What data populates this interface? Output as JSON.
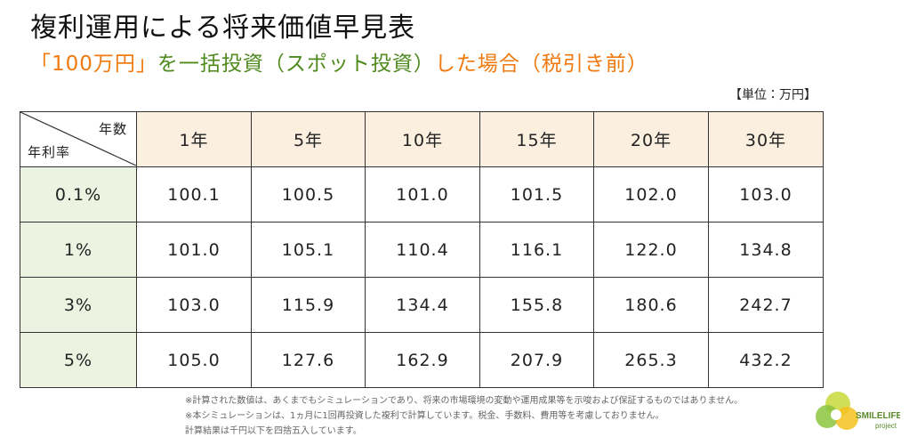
{
  "header": {
    "title": "複利運用による将来価値早見表",
    "subtitle": [
      "「100万円」",
      "を一括投資（スポット投資）",
      "した場合（税引き前）"
    ],
    "unit": "【単位：万円】"
  },
  "table": {
    "corner": {
      "columns_label": "年数",
      "rows_label": "年利率"
    },
    "columns": [
      "1年",
      "5年",
      "10年",
      "15年",
      "20年",
      "30年"
    ],
    "rows": [
      {
        "rate": "0.1%",
        "values": [
          "100.1",
          "100.5",
          "101.0",
          "101.5",
          "102.0",
          "103.0"
        ]
      },
      {
        "rate": "1%",
        "values": [
          "101.0",
          "105.1",
          "110.4",
          "116.1",
          "122.0",
          "134.8"
        ]
      },
      {
        "rate": "3%",
        "values": [
          "103.0",
          "115.9",
          "134.4",
          "155.8",
          "180.6",
          "242.7"
        ]
      },
      {
        "rate": "5%",
        "values": [
          "105.0",
          "127.6",
          "162.9",
          "207.9",
          "265.3",
          "432.2"
        ]
      }
    ]
  },
  "notes": [
    "※計算された数値は、あくまでもシミュレーションであり、将来の市場環境の変動や運用成果等を示唆および保証するものではありません。",
    "※本シミュレーションは、1ヵ月に1回再投資した複利で計算しています。税金、手数料、費用等を考慮しておりません。",
    "計算結果は千円以下を四捨五入しています。"
  ],
  "logo": {
    "name": "SMILELIFE",
    "sub": "project"
  }
}
